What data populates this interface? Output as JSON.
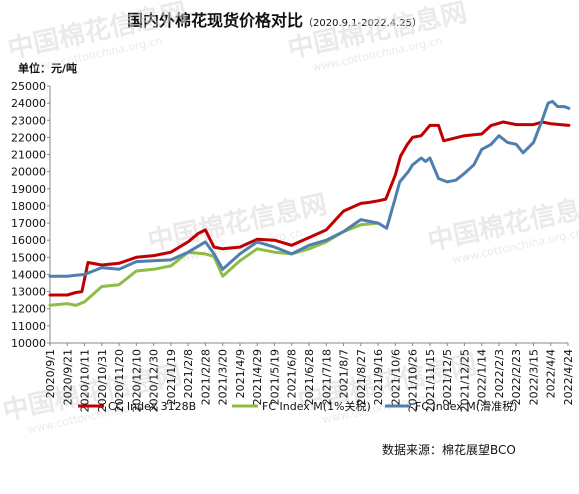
{
  "header": {
    "title": "国内外棉花现货价格对比",
    "subtitle": "（2020.9.1-2022.4.25）",
    "unit_label": "单位：元/吨"
  },
  "footer": {
    "source": "数据来源：棉花展望BCO"
  },
  "watermark": {
    "text": "中国棉花信息网",
    "url": "www.cottonchina.org.cn"
  },
  "chart_data": {
    "type": "line",
    "title": "国内外棉花现货价格对比",
    "ylabel": "单位：元/吨",
    "ylim": [
      10000,
      25000
    ],
    "yticks": [
      10000,
      11000,
      12000,
      13000,
      14000,
      15000,
      16000,
      17000,
      18000,
      19000,
      20000,
      21000,
      22000,
      23000,
      24000,
      25000
    ],
    "xticks": [
      "2020/9/1",
      "2020/9/21",
      "2020/10/11",
      "2020/10/31",
      "2020/11/20",
      "2020/12/10",
      "2020/12/30",
      "2021/1/19",
      "2021/2/8",
      "2021/2/28",
      "2021/3/20",
      "2021/4/9",
      "2021/4/29",
      "2021/5/19",
      "2021/6/8",
      "2021/6/28",
      "2021/7/18",
      "2021/8/7",
      "2021/8/27",
      "2021/9/16",
      "2021/10/6",
      "2021/10/26",
      "2021/11/15",
      "2021/12/5",
      "2021/12/25",
      "2022/1/14",
      "2022/2/3",
      "2022/2/23",
      "2022/3/15",
      "2022/4/4",
      "2022/4/24"
    ],
    "legend_position": "bottom",
    "grid": false,
    "series": [
      {
        "name": "CC Index 3128B",
        "color": "#c00000",
        "points": [
          [
            "2020/9/1",
            12800
          ],
          [
            "2020/9/21",
            12800
          ],
          [
            "2020/10/1",
            12950
          ],
          [
            "2020/10/8",
            13000
          ],
          [
            "2020/10/15",
            14700
          ],
          [
            "2020/10/31",
            14550
          ],
          [
            "2020/11/20",
            14650
          ],
          [
            "2020/12/10",
            15000
          ],
          [
            "2020/12/30",
            15100
          ],
          [
            "2021/1/19",
            15300
          ],
          [
            "2021/2/8",
            15900
          ],
          [
            "2021/2/20",
            16400
          ],
          [
            "2021/2/28",
            16600
          ],
          [
            "2021/3/10",
            15600
          ],
          [
            "2021/3/20",
            15500
          ],
          [
            "2021/4/9",
            15600
          ],
          [
            "2021/4/29",
            16050
          ],
          [
            "2021/5/19",
            16000
          ],
          [
            "2021/6/8",
            15700
          ],
          [
            "2021/6/28",
            16150
          ],
          [
            "2021/7/18",
            16600
          ],
          [
            "2021/8/7",
            17700
          ],
          [
            "2021/8/27",
            18150
          ],
          [
            "2021/9/5",
            18200
          ],
          [
            "2021/9/16",
            18300
          ],
          [
            "2021/9/25",
            18400
          ],
          [
            "2021/10/6",
            19800
          ],
          [
            "2021/10/12",
            20900
          ],
          [
            "2021/10/20",
            21600
          ],
          [
            "2021/10/26",
            22000
          ],
          [
            "2021/11/5",
            22100
          ],
          [
            "2021/11/15",
            22700
          ],
          [
            "2021/11/25",
            22700
          ],
          [
            "2021/12/1",
            21800
          ],
          [
            "2021/12/25",
            22100
          ],
          [
            "2022/1/14",
            22200
          ],
          [
            "2022/1/25",
            22700
          ],
          [
            "2022/2/8",
            22900
          ],
          [
            "2022/2/23",
            22750
          ],
          [
            "2022/3/15",
            22750
          ],
          [
            "2022/3/25",
            22900
          ],
          [
            "2022/4/4",
            22800
          ],
          [
            "2022/4/25",
            22700
          ]
        ]
      },
      {
        "name": "FC Index M(1%关税)",
        "color": "#8fbc45",
        "points": [
          [
            "2020/9/1",
            12200
          ],
          [
            "2020/9/21",
            12300
          ],
          [
            "2020/10/1",
            12200
          ],
          [
            "2020/10/11",
            12400
          ],
          [
            "2020/10/31",
            13300
          ],
          [
            "2020/11/20",
            13400
          ],
          [
            "2020/12/10",
            14200
          ],
          [
            "2020/12/30",
            14300
          ],
          [
            "2021/1/19",
            14500
          ],
          [
            "2021/2/8",
            15300
          ],
          [
            "2021/2/28",
            15200
          ],
          [
            "2021/3/10",
            15050
          ],
          [
            "2021/3/20",
            13900
          ],
          [
            "2021/4/9",
            14800
          ],
          [
            "2021/4/29",
            15500
          ],
          [
            "2021/5/19",
            15300
          ],
          [
            "2021/6/8",
            15200
          ],
          [
            "2021/6/28",
            15500
          ],
          [
            "2021/7/18",
            15900
          ],
          [
            "2021/8/7",
            16500
          ],
          [
            "2021/8/27",
            16900
          ],
          [
            "2021/9/16",
            17000
          ]
        ]
      },
      {
        "name": "FC Index M(滑准税)",
        "color": "#4f7fae",
        "points": [
          [
            "2020/9/1",
            13900
          ],
          [
            "2020/9/21",
            13900
          ],
          [
            "2020/10/1",
            13950
          ],
          [
            "2020/10/11",
            14000
          ],
          [
            "2020/10/31",
            14400
          ],
          [
            "2020/11/20",
            14300
          ],
          [
            "2020/12/10",
            14750
          ],
          [
            "2020/12/30",
            14800
          ],
          [
            "2021/1/19",
            14850
          ],
          [
            "2021/2/8",
            15300
          ],
          [
            "2021/2/28",
            15900
          ],
          [
            "2021/3/10",
            15200
          ],
          [
            "2021/3/20",
            14300
          ],
          [
            "2021/4/9",
            15200
          ],
          [
            "2021/4/29",
            15900
          ],
          [
            "2021/5/19",
            15600
          ],
          [
            "2021/6/8",
            15200
          ],
          [
            "2021/6/28",
            15700
          ],
          [
            "2021/7/18",
            16000
          ],
          [
            "2021/8/7",
            16500
          ],
          [
            "2021/8/27",
            17200
          ],
          [
            "2021/9/16",
            17000
          ],
          [
            "2021/9/26",
            16700
          ],
          [
            "2021/10/5",
            18300
          ],
          [
            "2021/10/11",
            19400
          ],
          [
            "2021/10/21",
            20000
          ],
          [
            "2021/10/26",
            20400
          ],
          [
            "2021/11/5",
            20800
          ],
          [
            "2021/11/10",
            20600
          ],
          [
            "2021/11/15",
            20800
          ],
          [
            "2021/11/25",
            19600
          ],
          [
            "2021/12/5",
            19400
          ],
          [
            "2021/12/15",
            19500
          ],
          [
            "2021/12/25",
            19900
          ],
          [
            "2022/1/5",
            20400
          ],
          [
            "2022/1/14",
            21300
          ],
          [
            "2022/1/25",
            21600
          ],
          [
            "2022/2/3",
            22100
          ],
          [
            "2022/2/13",
            21700
          ],
          [
            "2022/2/23",
            21600
          ],
          [
            "2022/3/3",
            21100
          ],
          [
            "2022/3/15",
            21700
          ],
          [
            "2022/3/25",
            23000
          ],
          [
            "2022/4/1",
            24000
          ],
          [
            "2022/4/6",
            24100
          ],
          [
            "2022/4/12",
            23800
          ],
          [
            "2022/4/20",
            23800
          ],
          [
            "2022/4/25",
            23700
          ]
        ]
      }
    ]
  }
}
